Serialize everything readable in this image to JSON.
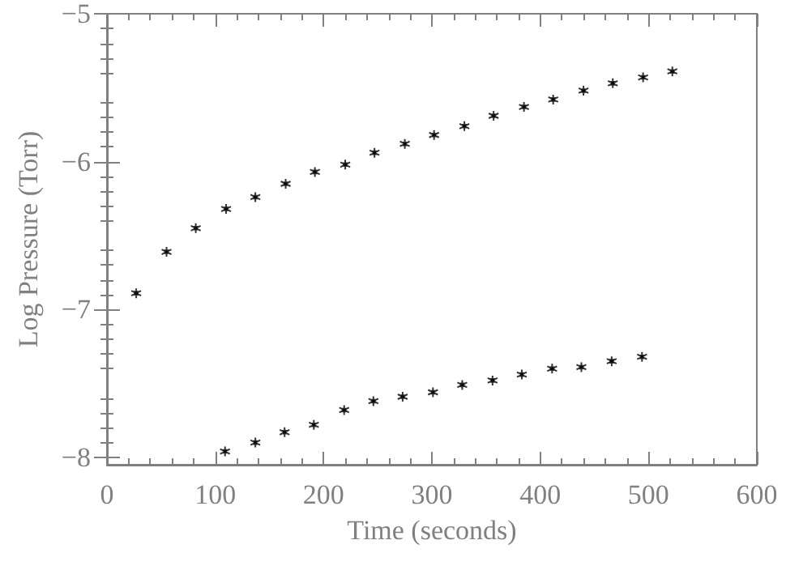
{
  "chart_data": {
    "type": "scatter",
    "xlabel": "Time (seconds)",
    "ylabel": "Log Pressure (Torr)",
    "xlim": [
      0,
      600
    ],
    "xticks": [
      0,
      100,
      200,
      300,
      400,
      500,
      600
    ],
    "ylim": [
      -8.05,
      -5
    ],
    "yticks": [
      -8,
      -7,
      -6,
      -5
    ],
    "grid": false,
    "marker": "cross",
    "series": [
      {
        "color": "#000000",
        "x": [
          27,
          55,
          82,
          110,
          137,
          165,
          192,
          220,
          247,
          275,
          302,
          330,
          357,
          385,
          412,
          440,
          467,
          495,
          522
        ],
        "values": [
          -6.89,
          -6.61,
          -6.45,
          -6.32,
          -6.24,
          -6.15,
          -6.07,
          -6.02,
          -5.94,
          -5.88,
          -5.82,
          -5.76,
          -5.69,
          -5.63,
          -5.58,
          -5.52,
          -5.47,
          -5.43,
          -5.39
        ]
      },
      {
        "color": "#000000",
        "x": [
          109,
          137,
          164,
          191,
          219,
          246,
          273,
          301,
          328,
          356,
          383,
          411,
          438,
          466,
          494
        ],
        "values": [
          -7.96,
          -7.9,
          -7.83,
          -7.78,
          -7.68,
          -7.62,
          -7.59,
          -7.56,
          -7.51,
          -7.48,
          -7.44,
          -7.4,
          -7.39,
          -7.35,
          -7.32
        ]
      }
    ]
  }
}
